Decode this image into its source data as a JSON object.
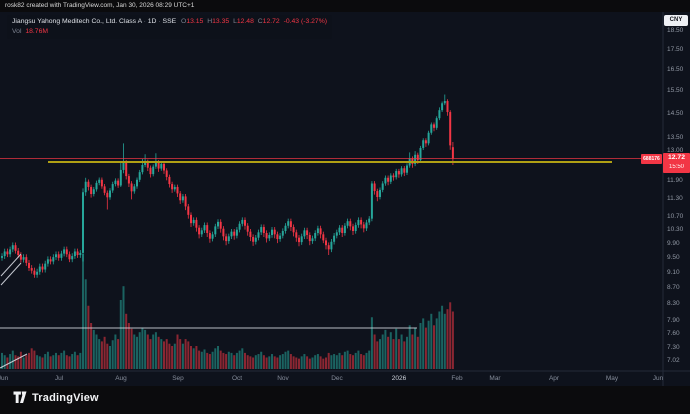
{
  "attribution": {
    "text": "rosk82 created with TradingView.com, Jan 30, 2026 08:29 UTC+1"
  },
  "theme": {
    "outer_bg": "#0b0b0d",
    "chart_bg": "#0e121c",
    "up_color": "#26a69a",
    "down_color": "#f23645",
    "vol_up": "rgba(38,166,154,0.55)",
    "vol_down": "rgba(242,54,69,0.55)",
    "axis_text": "#9097a3",
    "separator": "#242a38",
    "level_yellow": "#b0a014",
    "last_price_line": "rgba(242,54,69,0.7)",
    "drawing_white": "#d6dae2"
  },
  "legend": {
    "title": "Jiangsu Yahong Meditech Co., Ltd. Class A",
    "sep1": "·",
    "timeframe": "1D",
    "sep2": "·",
    "exchange": "SSE",
    "o_label": "O",
    "o": "13.15",
    "h_label": "H",
    "h": "13.35",
    "l_label": "L",
    "l": "12.48",
    "c_label": "C",
    "c": "12.72",
    "change": "-0.43 (-3.27%)",
    "vol_label": "Vol",
    "vol_value": "18.76M"
  },
  "price_axis": {
    "currency": "CNY",
    "ticks": [
      "18.50",
      "17.50",
      "16.50",
      "15.50",
      "14.50",
      "13.50",
      "13.00",
      "11.90",
      "11.30",
      "10.70",
      "10.30",
      "9.90",
      "9.50",
      "9.10",
      "8.70",
      "8.30",
      "7.90",
      "7.60",
      "7.30",
      "7.02"
    ],
    "last_price": "12.72",
    "countdown": "15:50",
    "symbol_code": "688176"
  },
  "time_axis": {
    "ticks": [
      {
        "label": "Jun",
        "x": 3,
        "major": false
      },
      {
        "label": "Jul",
        "x": 59,
        "major": false
      },
      {
        "label": "Aug",
        "x": 121,
        "major": false
      },
      {
        "label": "Sep",
        "x": 178,
        "major": false
      },
      {
        "label": "Oct",
        "x": 237,
        "major": false
      },
      {
        "label": "Nov",
        "x": 283,
        "major": false
      },
      {
        "label": "Dec",
        "x": 337,
        "major": false
      },
      {
        "label": "2026",
        "x": 399,
        "major": true
      },
      {
        "label": "Feb",
        "x": 457,
        "major": false
      },
      {
        "label": "Mar",
        "x": 495,
        "major": false
      },
      {
        "label": "Apr",
        "x": 554,
        "major": false
      },
      {
        "label": "May",
        "x": 612,
        "major": false
      },
      {
        "label": "Jun",
        "x": 658,
        "major": false
      }
    ]
  },
  "levels": {
    "last_price": 12.72,
    "yellow_line": {
      "price": 12.59,
      "x1": 48,
      "x2": 612
    },
    "volume_line": {
      "y": 328,
      "x1": 0,
      "x2": 417
    }
  },
  "drawings": {
    "segments": [
      [
        1,
        285,
        21,
        263
      ],
      [
        1,
        276,
        21,
        254
      ],
      [
        0,
        368,
        27,
        354
      ]
    ]
  },
  "chart_data": {
    "type": "candlestick",
    "title": "Jiangsu Yahong Meditech Co., Ltd. Class A",
    "symbol_code": "688176",
    "exchange": "SSE",
    "interval": "1D",
    "currency": "CNY",
    "scale": "log",
    "ylim": [
      7.02,
      18.5
    ],
    "x_range": [
      "Jun 2025",
      "Jan 2026"
    ],
    "last_bar": {
      "open": 13.15,
      "high": 13.35,
      "low": 12.48,
      "close": 12.72,
      "volume_label": "18.76M"
    },
    "legend_note": "columns are [open, high, low, close, relative_volume]",
    "candles": [
      [
        9.5,
        9.63,
        9.42,
        9.55,
        14
      ],
      [
        9.55,
        9.76,
        9.47,
        9.68,
        12
      ],
      [
        9.68,
        9.76,
        9.52,
        9.6,
        10
      ],
      [
        9.6,
        9.82,
        9.52,
        9.74,
        13
      ],
      [
        9.74,
        9.94,
        9.66,
        9.86,
        16
      ],
      [
        9.86,
        9.94,
        9.62,
        9.7,
        12
      ],
      [
        9.7,
        9.78,
        9.5,
        9.58,
        11
      ],
      [
        9.58,
        9.66,
        9.37,
        9.45,
        15
      ],
      [
        9.45,
        9.6,
        9.37,
        9.52,
        10
      ],
      [
        9.52,
        9.6,
        9.28,
        9.36,
        12
      ],
      [
        9.36,
        9.44,
        9.14,
        9.22,
        14
      ],
      [
        9.22,
        9.3,
        9.07,
        9.15,
        18
      ],
      [
        9.15,
        9.23,
        8.96,
        9.04,
        16
      ],
      [
        9.04,
        9.2,
        8.96,
        9.12,
        12
      ],
      [
        9.12,
        9.34,
        9.04,
        9.26,
        11
      ],
      [
        9.26,
        9.34,
        9.1,
        9.18,
        10
      ],
      [
        9.18,
        9.42,
        9.1,
        9.34,
        13
      ],
      [
        9.34,
        9.54,
        9.26,
        9.46,
        15
      ],
      [
        9.46,
        9.54,
        9.32,
        9.4,
        11
      ],
      [
        9.4,
        9.6,
        9.32,
        9.52,
        12
      ],
      [
        9.52,
        9.68,
        9.44,
        9.6,
        14
      ],
      [
        9.6,
        9.68,
        9.42,
        9.5,
        12
      ],
      [
        9.5,
        9.7,
        9.42,
        9.62,
        14
      ],
      [
        9.62,
        9.82,
        9.54,
        9.74,
        16
      ],
      [
        9.74,
        9.82,
        9.52,
        9.6,
        12
      ],
      [
        9.6,
        9.68,
        9.38,
        9.46,
        11
      ],
      [
        9.46,
        9.63,
        9.38,
        9.55,
        13
      ],
      [
        9.55,
        9.76,
        9.47,
        9.68,
        15
      ],
      [
        9.68,
        9.76,
        9.5,
        9.58,
        12
      ],
      [
        9.58,
        9.72,
        9.5,
        9.64,
        14
      ],
      [
        9.64,
        11.65,
        9.4,
        11.52,
        100
      ],
      [
        11.52,
        12.02,
        11.4,
        11.88,
        78
      ],
      [
        11.88,
        11.96,
        11.58,
        11.7,
        55
      ],
      [
        11.7,
        11.78,
        11.34,
        11.46,
        40
      ],
      [
        11.46,
        11.7,
        11.38,
        11.62,
        34
      ],
      [
        11.62,
        11.92,
        11.54,
        11.84,
        30
      ],
      [
        11.84,
        12.03,
        11.76,
        11.95,
        26
      ],
      [
        11.95,
        12.03,
        11.64,
        11.72,
        24
      ],
      [
        11.72,
        11.8,
        11.42,
        11.5,
        28
      ],
      [
        11.5,
        11.58,
        10.95,
        11.35,
        22
      ],
      [
        11.35,
        11.66,
        11.27,
        11.58,
        20
      ],
      [
        11.58,
        11.88,
        11.5,
        11.8,
        25
      ],
      [
        11.8,
        12.0,
        11.72,
        11.92,
        30
      ],
      [
        11.92,
        12.0,
        11.67,
        11.75,
        26
      ],
      [
        11.75,
        12.55,
        11.7,
        12.3,
        60
      ],
      [
        12.3,
        13.3,
        12.18,
        12.6,
        72
      ],
      [
        12.6,
        12.66,
        11.96,
        12.08,
        48
      ],
      [
        12.08,
        12.16,
        11.7,
        11.82,
        40
      ],
      [
        11.82,
        11.9,
        11.28,
        11.55,
        35
      ],
      [
        11.55,
        11.8,
        11.47,
        11.72,
        30
      ],
      [
        11.72,
        12.03,
        11.64,
        11.95,
        28
      ],
      [
        11.95,
        12.3,
        11.87,
        12.22,
        32
      ],
      [
        12.22,
        12.7,
        12.14,
        12.48,
        36
      ],
      [
        12.48,
        12.88,
        12.4,
        12.6,
        34
      ],
      [
        12.6,
        12.68,
        12.26,
        12.38,
        30
      ],
      [
        12.38,
        12.46,
        12.03,
        12.15,
        26
      ],
      [
        12.15,
        12.5,
        12.07,
        12.42,
        30
      ],
      [
        12.42,
        12.92,
        12.34,
        12.58,
        32
      ],
      [
        12.58,
        12.66,
        12.23,
        12.35,
        28
      ],
      [
        12.35,
        12.6,
        12.27,
        12.52,
        26
      ],
      [
        12.52,
        12.6,
        12.16,
        12.28,
        24
      ],
      [
        12.28,
        12.36,
        11.93,
        12.05,
        26
      ],
      [
        12.05,
        12.13,
        11.68,
        11.8,
        22
      ],
      [
        11.8,
        11.88,
        11.5,
        11.62,
        20
      ],
      [
        11.62,
        11.78,
        11.54,
        11.7,
        22
      ],
      [
        11.7,
        11.78,
        11.36,
        11.48,
        30
      ],
      [
        11.48,
        11.56,
        11.13,
        11.25,
        26
      ],
      [
        11.25,
        11.46,
        11.17,
        11.38,
        22
      ],
      [
        11.38,
        11.46,
        10.93,
        11.05,
        26
      ],
      [
        11.05,
        11.13,
        10.66,
        10.78,
        24
      ],
      [
        10.78,
        10.86,
        10.4,
        10.52,
        20
      ],
      [
        10.52,
        10.7,
        10.44,
        10.62,
        18
      ],
      [
        10.62,
        10.7,
        10.26,
        10.38,
        20
      ],
      [
        10.38,
        10.46,
        10.06,
        10.18,
        16
      ],
      [
        10.18,
        10.38,
        10.1,
        10.3,
        15
      ],
      [
        10.3,
        10.54,
        10.22,
        10.46,
        17
      ],
      [
        10.46,
        10.54,
        10.1,
        10.22,
        14
      ],
      [
        10.22,
        10.3,
        9.93,
        10.05,
        13
      ],
      [
        10.05,
        10.26,
        9.97,
        10.18,
        15
      ],
      [
        10.18,
        10.5,
        10.1,
        10.42,
        18
      ],
      [
        10.42,
        10.64,
        10.34,
        10.56,
        20
      ],
      [
        10.56,
        10.64,
        10.23,
        10.35,
        16
      ],
      [
        10.35,
        10.43,
        10.0,
        10.12,
        14
      ],
      [
        10.12,
        10.2,
        9.86,
        9.98,
        13
      ],
      [
        9.98,
        10.2,
        9.9,
        10.12,
        15
      ],
      [
        10.12,
        10.34,
        10.04,
        10.26,
        14
      ],
      [
        10.26,
        10.34,
        10.02,
        10.14,
        12
      ],
      [
        10.14,
        10.4,
        10.06,
        10.32,
        14
      ],
      [
        10.32,
        10.58,
        10.24,
        10.5,
        16
      ],
      [
        10.5,
        10.7,
        10.42,
        10.62,
        18
      ],
      [
        10.62,
        10.7,
        10.32,
        10.44,
        14
      ],
      [
        10.44,
        10.52,
        10.14,
        10.26,
        12
      ],
      [
        10.26,
        10.34,
        9.98,
        10.1,
        11
      ],
      [
        10.1,
        10.18,
        9.84,
        9.96,
        10
      ],
      [
        9.96,
        10.16,
        9.88,
        10.08,
        12
      ],
      [
        10.08,
        10.32,
        10.0,
        10.24,
        13
      ],
      [
        10.24,
        10.48,
        10.16,
        10.4,
        15
      ],
      [
        10.4,
        10.48,
        10.1,
        10.22,
        12
      ],
      [
        10.22,
        10.3,
        9.94,
        10.06,
        10
      ],
      [
        10.06,
        10.24,
        9.98,
        10.16,
        11
      ],
      [
        10.16,
        10.4,
        10.08,
        10.32,
        13
      ],
      [
        10.32,
        10.4,
        10.06,
        10.18,
        11
      ],
      [
        10.18,
        10.26,
        9.92,
        10.04,
        10
      ],
      [
        10.04,
        10.22,
        9.96,
        10.14,
        12
      ],
      [
        10.14,
        10.36,
        10.06,
        10.28,
        13
      ],
      [
        10.28,
        10.52,
        10.2,
        10.44,
        15
      ],
      [
        10.44,
        10.66,
        10.36,
        10.58,
        16
      ],
      [
        10.58,
        10.66,
        10.28,
        10.4,
        13
      ],
      [
        10.4,
        10.48,
        10.12,
        10.24,
        11
      ],
      [
        10.24,
        10.32,
        9.96,
        10.08,
        10
      ],
      [
        10.08,
        10.16,
        9.83,
        9.95,
        9
      ],
      [
        9.95,
        10.2,
        9.87,
        10.12,
        11
      ],
      [
        10.12,
        10.38,
        10.04,
        10.3,
        13
      ],
      [
        10.3,
        10.38,
        10.04,
        10.16,
        11
      ],
      [
        10.16,
        10.24,
        9.86,
        9.98,
        9
      ],
      [
        9.98,
        10.14,
        9.9,
        10.06,
        10
      ],
      [
        10.06,
        10.3,
        9.98,
        10.22,
        12
      ],
      [
        10.22,
        10.44,
        10.14,
        10.36,
        13
      ],
      [
        10.36,
        10.44,
        10.06,
        10.18,
        11
      ],
      [
        10.18,
        10.26,
        9.92,
        10.0,
        9
      ],
      [
        10.0,
        10.08,
        9.74,
        9.86,
        10
      ],
      [
        9.86,
        9.94,
        9.58,
        9.74,
        14
      ],
      [
        9.74,
        10.04,
        9.66,
        9.96,
        12
      ],
      [
        9.96,
        10.22,
        9.88,
        10.14,
        13
      ],
      [
        10.14,
        10.32,
        10.06,
        10.24,
        12
      ],
      [
        10.24,
        10.46,
        10.16,
        10.38,
        14
      ],
      [
        10.38,
        10.46,
        10.1,
        10.22,
        12
      ],
      [
        10.22,
        10.52,
        10.14,
        10.44,
        15
      ],
      [
        10.44,
        10.66,
        10.36,
        10.58,
        16
      ],
      [
        10.58,
        10.66,
        10.3,
        10.42,
        13
      ],
      [
        10.42,
        10.5,
        10.16,
        10.28,
        12
      ],
      [
        10.28,
        10.54,
        10.2,
        10.46,
        14
      ],
      [
        10.46,
        10.7,
        10.38,
        10.62,
        16
      ],
      [
        10.62,
        10.7,
        10.36,
        10.48,
        13
      ],
      [
        10.48,
        10.56,
        10.24,
        10.36,
        12
      ],
      [
        10.36,
        10.62,
        10.28,
        10.54,
        14
      ],
      [
        10.54,
        10.74,
        10.46,
        10.66,
        16
      ],
      [
        10.66,
        11.9,
        10.58,
        11.82,
        45
      ],
      [
        11.82,
        11.9,
        11.44,
        11.56,
        30
      ],
      [
        11.56,
        11.64,
        11.22,
        11.36,
        24
      ],
      [
        11.36,
        11.68,
        11.28,
        11.6,
        26
      ],
      [
        11.6,
        11.9,
        11.52,
        11.82,
        30
      ],
      [
        11.82,
        12.1,
        11.74,
        12.02,
        34
      ],
      [
        12.02,
        12.1,
        11.76,
        11.88,
        28
      ],
      [
        11.88,
        12.18,
        11.8,
        12.1,
        32
      ],
      [
        12.1,
        12.18,
        11.92,
        12.04,
        26
      ],
      [
        12.04,
        12.34,
        11.96,
        12.26,
        35
      ],
      [
        12.26,
        12.34,
        12.02,
        12.14,
        26
      ],
      [
        12.14,
        12.44,
        12.06,
        12.36,
        30
      ],
      [
        12.36,
        12.44,
        12.08,
        12.2,
        24
      ],
      [
        12.2,
        12.54,
        12.12,
        12.46,
        28
      ],
      [
        12.46,
        12.95,
        12.38,
        12.72,
        38
      ],
      [
        12.72,
        12.8,
        12.38,
        12.52,
        30
      ],
      [
        12.52,
        13.0,
        12.44,
        12.86,
        36
      ],
      [
        12.86,
        12.94,
        12.52,
        12.66,
        28
      ],
      [
        12.66,
        13.2,
        12.58,
        13.12,
        40
      ],
      [
        13.12,
        13.5,
        13.04,
        13.42,
        44
      ],
      [
        13.42,
        13.5,
        13.16,
        13.3,
        36
      ],
      [
        13.3,
        13.8,
        13.22,
        13.72,
        42
      ],
      [
        13.72,
        14.14,
        13.64,
        14.06,
        48
      ],
      [
        14.06,
        14.14,
        13.78,
        13.92,
        38
      ],
      [
        13.92,
        14.4,
        13.84,
        14.32,
        44
      ],
      [
        14.32,
        14.78,
        14.24,
        14.66,
        50
      ],
      [
        14.66,
        15.04,
        14.58,
        14.96,
        55
      ],
      [
        14.96,
        15.35,
        14.88,
        15.06,
        48
      ],
      [
        15.06,
        15.14,
        14.42,
        14.58,
        52
      ],
      [
        14.58,
        14.66,
        13.05,
        13.22,
        58
      ],
      [
        13.15,
        13.35,
        12.48,
        12.72,
        50
      ]
    ]
  },
  "footer": {
    "brand": "TradingView"
  }
}
